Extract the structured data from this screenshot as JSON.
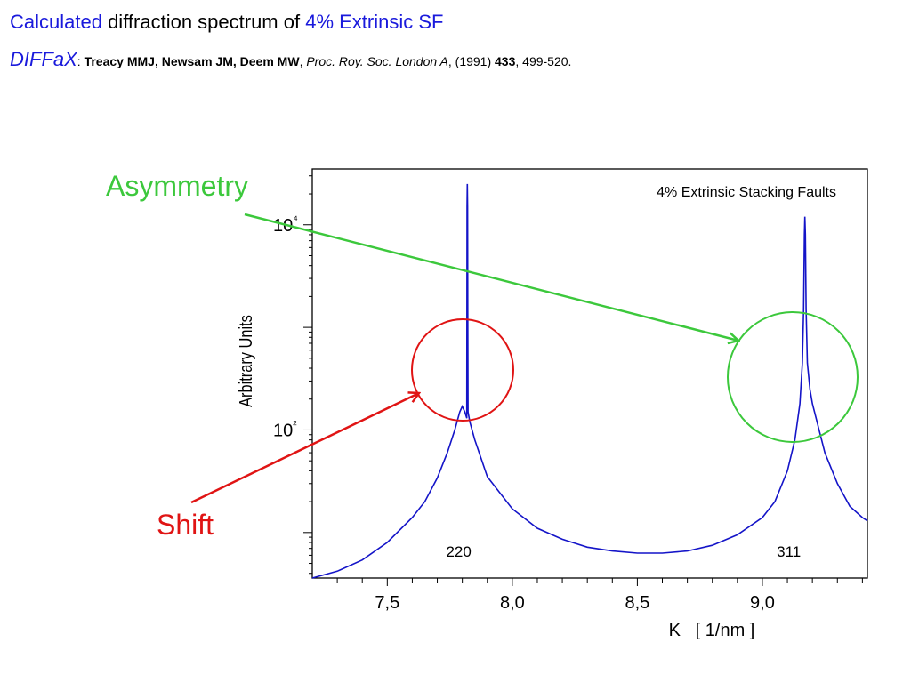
{
  "header": {
    "title_part1": "Calculated",
    "title_part2": " diffraction spectrum of ",
    "title_part3": "4% Extrinsic SF",
    "ref_program": "DIFFaX",
    "ref_sep": ":",
    "ref_authors": " Treacy MMJ, Newsam JM, Deem MW",
    "ref_comma1": ", ",
    "ref_journal": "Proc. Roy. Soc. London A",
    "ref_year": ", (1991) ",
    "ref_volume": "433",
    "ref_pages": ", 499-520."
  },
  "annotations": {
    "asymmetry": "Asymmetry",
    "shift": "Shift",
    "asymmetry_color": "#3cc83c",
    "shift_color": "#e01414"
  },
  "chart_data": {
    "type": "line",
    "title": "4% Extrinsic Stacking Faults",
    "xlabel": "K   [ 1/nm ]",
    "ylabel": "Arbitrary Units",
    "x_ticks": [
      "7,5",
      "8,0",
      "8,5",
      "9,0"
    ],
    "x_tick_values": [
      7.5,
      8.0,
      8.5,
      9.0
    ],
    "y_ticks": [
      "10²",
      "10⁴"
    ],
    "y_tick_values": [
      100,
      10000
    ],
    "y_scale": "log",
    "xlim": [
      7.2,
      9.42
    ],
    "ylim": [
      3.6,
      35000
    ],
    "grid": false,
    "series_color": "#1414c8",
    "peak_labels": [
      {
        "text": "220",
        "x": 7.8
      },
      {
        "text": "311",
        "x": 9.12
      }
    ],
    "series": [
      {
        "x": [
          7.2,
          7.3,
          7.4,
          7.5,
          7.6,
          7.65,
          7.7,
          7.74,
          7.77,
          7.79,
          7.8,
          7.81,
          7.818,
          7.819,
          7.82,
          7.821,
          7.822,
          7.823,
          7.83,
          7.85,
          7.9,
          8.0,
          8.1,
          8.2,
          8.3,
          8.4,
          8.5,
          8.6,
          8.7,
          8.8,
          8.9,
          9.0,
          9.05,
          9.1,
          9.13,
          9.15,
          9.16,
          9.165,
          9.168,
          9.17,
          9.172,
          9.175,
          9.18,
          9.19,
          9.2,
          9.25,
          9.3,
          9.35,
          9.4,
          9.42
        ],
        "y": [
          3.6,
          4.2,
          5.4,
          8.0,
          14,
          20,
          34,
          60,
          100,
          150,
          170,
          150,
          130,
          15000,
          25000,
          15000,
          1500,
          150,
          120,
          80,
          35,
          17,
          11,
          8.6,
          7.2,
          6.6,
          6.3,
          6.3,
          6.6,
          7.5,
          9.5,
          14,
          20,
          40,
          80,
          180,
          450,
          1500,
          8000,
          12000,
          8000,
          1500,
          450,
          250,
          180,
          60,
          30,
          18,
          14,
          13
        ]
      }
    ]
  }
}
